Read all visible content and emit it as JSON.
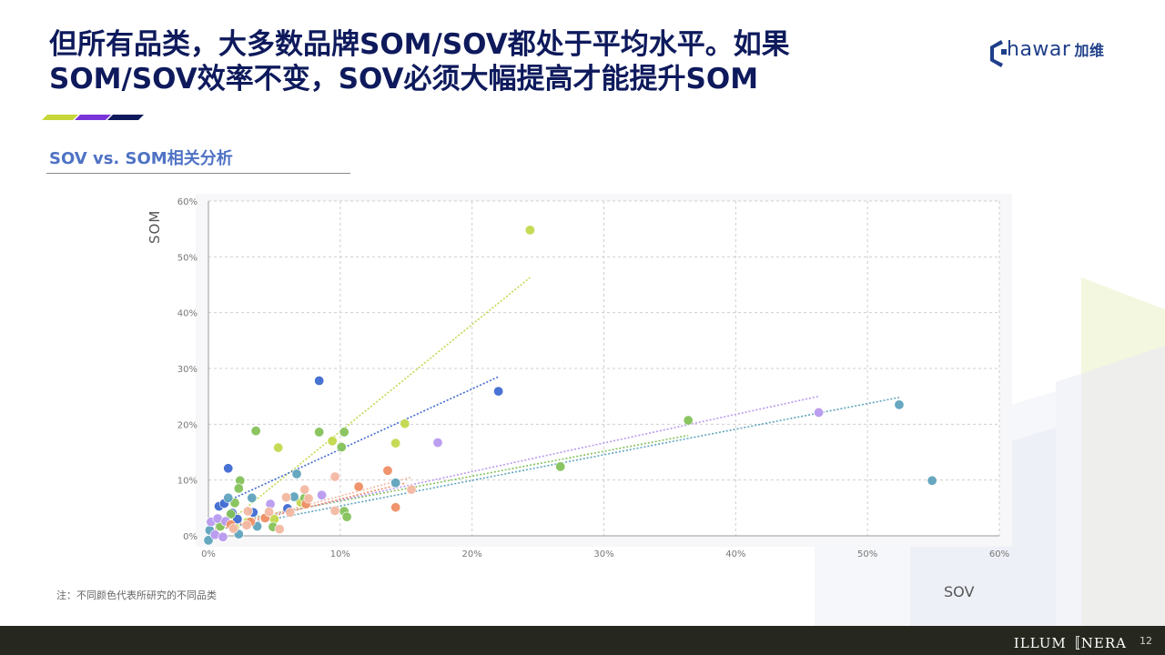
{
  "slide": {
    "title_line1": "但所有品类，大多数品牌SOM/SOV都处于平均水平。如果",
    "title_line2": "SOM/SOV效率不变，SOV必须大幅提高才能提升SOM",
    "subtitle": "SOV vs. SOM相关分析",
    "note": "注：不同颜色代表所研究的不同品类",
    "footer_brand": "ILLUM〚NERA",
    "page_number": "12",
    "logo_text": "hawar",
    "logo_cn": "加维",
    "accent_colors": [
      "#c6d637",
      "#7a35d8",
      "#0e1a5c"
    ]
  },
  "chart_data": {
    "type": "scatter",
    "xlabel": "SOV",
    "ylabel": "SOM",
    "xlim": [
      0,
      60
    ],
    "ylim": [
      0,
      60
    ],
    "x_ticks": [
      0,
      10,
      20,
      30,
      40,
      50,
      60
    ],
    "y_ticks": [
      0,
      10,
      20,
      30,
      40,
      50,
      60
    ],
    "tick_labels_x": [
      "0%",
      "10%",
      "20%",
      "30%",
      "40%",
      "50%",
      "60%"
    ],
    "tick_labels_y": [
      "0%",
      "10%",
      "20%",
      "30%",
      "40%",
      "50%",
      "60%"
    ],
    "grid": true,
    "series": [
      {
        "color": "#c3d94e",
        "points": [
          [
            24.4,
            54.8
          ],
          [
            14.9,
            20.1
          ],
          [
            9.4,
            17.0
          ],
          [
            14.2,
            16.6
          ],
          [
            5.3,
            15.8
          ],
          [
            1.0,
            2.0
          ],
          [
            2.0,
            1.5
          ],
          [
            3.0,
            2.5
          ],
          [
            5.0,
            3.0
          ],
          [
            7.0,
            6.0
          ]
        ],
        "trend": [
          [
            0.5,
            0.5
          ],
          [
            24.4,
            46.3
          ]
        ]
      },
      {
        "color": "#3f6bd1",
        "points": [
          [
            8.4,
            27.8
          ],
          [
            22.0,
            25.9
          ],
          [
            1.5,
            12.1
          ],
          [
            0.8,
            5.3
          ],
          [
            1.8,
            4.1
          ],
          [
            3.4,
            4.2
          ],
          [
            6.0,
            4.9
          ],
          [
            1.2,
            5.8
          ],
          [
            2.2,
            3.0
          ]
        ],
        "trend": [
          [
            0.5,
            5.2
          ],
          [
            22.0,
            28.5
          ]
        ]
      },
      {
        "color": "#84c25a",
        "points": [
          [
            3.6,
            18.8
          ],
          [
            8.4,
            18.6
          ],
          [
            10.3,
            18.6
          ],
          [
            10.1,
            15.9
          ],
          [
            36.4,
            20.7
          ],
          [
            26.7,
            12.4
          ],
          [
            2.4,
            9.9
          ],
          [
            2.3,
            8.5
          ],
          [
            2.0,
            5.9
          ],
          [
            10.3,
            4.4
          ],
          [
            10.5,
            3.4
          ],
          [
            4.9,
            1.6
          ],
          [
            7.3,
            6.8
          ],
          [
            1.7,
            3.9
          ],
          [
            0.9,
            1.7
          ]
        ],
        "trend": [
          [
            0.5,
            2.0
          ],
          [
            36.4,
            18.0
          ]
        ]
      },
      {
        "color": "#5fa4bd",
        "points": [
          [
            52.4,
            23.5
          ],
          [
            54.9,
            9.9
          ],
          [
            6.7,
            11.1
          ],
          [
            14.2,
            9.5
          ],
          [
            3.3,
            6.8
          ],
          [
            1.5,
            6.8
          ],
          [
            6.5,
            7.0
          ],
          [
            3.7,
            1.7
          ],
          [
            0.1,
            1.0
          ],
          [
            0.0,
            -0.8
          ],
          [
            2.3,
            0.3
          ]
        ],
        "trend": [
          [
            0.5,
            1.0
          ],
          [
            52.4,
            24.8
          ]
        ]
      },
      {
        "color": "#b99af0",
        "points": [
          [
            46.3,
            22.1
          ],
          [
            17.4,
            16.7
          ],
          [
            8.6,
            7.3
          ],
          [
            4.7,
            5.7
          ],
          [
            0.2,
            2.5
          ],
          [
            0.7,
            3.1
          ],
          [
            1.3,
            2.6
          ],
          [
            0.5,
            0.2
          ],
          [
            1.1,
            -0.2
          ]
        ],
        "trend": [
          [
            0.5,
            1.5
          ],
          [
            46.3,
            25.0
          ]
        ]
      },
      {
        "color": "#ef8f65",
        "points": [
          [
            13.6,
            11.7
          ],
          [
            14.2,
            5.1
          ],
          [
            11.4,
            8.8
          ],
          [
            7.4,
            5.7
          ],
          [
            4.3,
            3.2
          ],
          [
            3.2,
            2.5
          ],
          [
            1.7,
            2.0
          ]
        ],
        "trend": [
          [
            0.5,
            1.0
          ],
          [
            15.0,
            9.5
          ]
        ]
      },
      {
        "color": "#f4b9a3",
        "points": [
          [
            9.6,
            10.6
          ],
          [
            7.3,
            8.3
          ],
          [
            5.9,
            6.9
          ],
          [
            15.4,
            8.3
          ],
          [
            9.6,
            4.5
          ],
          [
            6.2,
            4.2
          ],
          [
            3.0,
            4.4
          ],
          [
            4.6,
            4.3
          ],
          [
            5.4,
            1.2
          ],
          [
            1.9,
            1.3
          ],
          [
            2.9,
            1.9
          ],
          [
            7.6,
            6.7
          ]
        ],
        "trend": [
          [
            0.5,
            1.2
          ],
          [
            15.4,
            10.5
          ]
        ]
      }
    ]
  }
}
